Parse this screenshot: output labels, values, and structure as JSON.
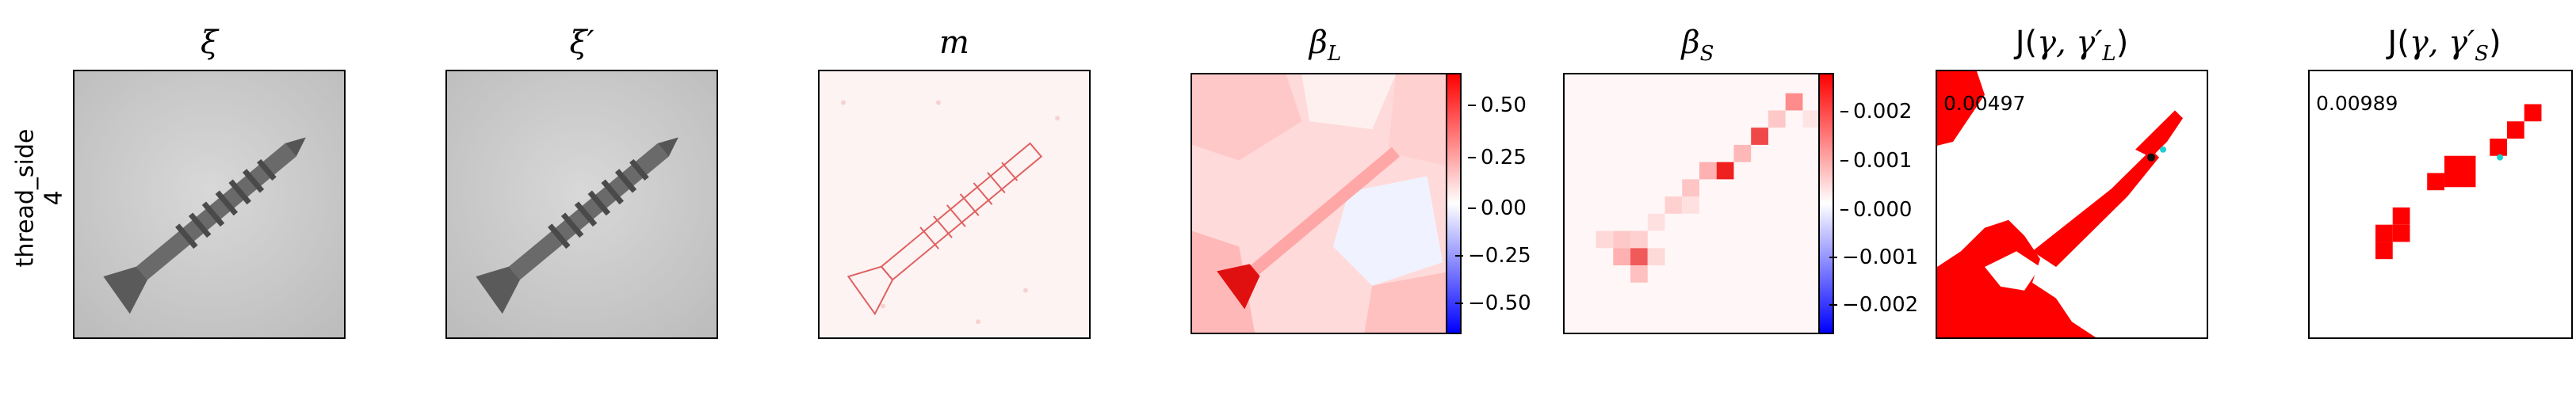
{
  "row_label": {
    "line1": "thread_side",
    "line2": "4"
  },
  "panels": [
    {
      "id": "xi",
      "title": "ξ"
    },
    {
      "id": "xi_prime",
      "title": "ξ′"
    },
    {
      "id": "m",
      "title": "m"
    },
    {
      "id": "beta_L",
      "title": "β",
      "title_sub": "L",
      "colorbar_ticks": [
        "0.50",
        "0.25",
        "0.00",
        "−0.25",
        "−0.50"
      ]
    },
    {
      "id": "beta_S",
      "title": "β",
      "title_sub": "S",
      "colorbar_ticks": [
        "0.002",
        "0.001",
        "0.000",
        "−0.001",
        "−0.002"
      ]
    },
    {
      "id": "J_L",
      "title_prefix": "J(",
      "title_gamma": "γ, γ′",
      "title_sub": "L",
      "title_suffix": ")",
      "value": "0.00497"
    },
    {
      "id": "J_S",
      "title_prefix": "J(",
      "title_gamma": "γ, γ′",
      "title_sub": "S",
      "title_suffix": ")",
      "value": "0.00989"
    }
  ],
  "colors": {
    "positive": "#ff0000",
    "negative": "#0000ff",
    "neutral": "#ffffff",
    "gray_bg": "#cfcfcf",
    "screw": "#555555"
  }
}
